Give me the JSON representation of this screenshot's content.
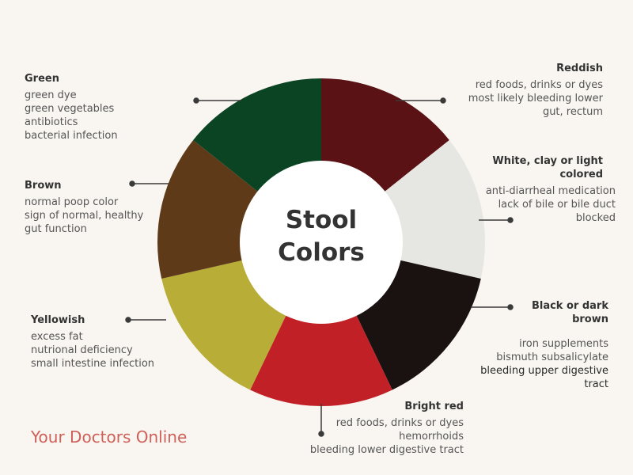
{
  "title_lines": [
    "Stool",
    "Colors"
  ],
  "brand": "Your Doctors Online",
  "segments": [
    {
      "key": "reddish",
      "color": "#5a1214"
    },
    {
      "key": "white",
      "color": "#e6e6e3"
    },
    {
      "key": "black",
      "color": "#1a1111"
    },
    {
      "key": "bright_red",
      "color": "#c12126"
    },
    {
      "key": "yellowish",
      "color": "#b8ad36"
    },
    {
      "key": "brown",
      "color": "#5e3a19"
    },
    {
      "key": "green",
      "color": "#0b4423"
    }
  ],
  "labels": {
    "green": {
      "title": "Green",
      "lines": [
        "green dye",
        "green vegetables",
        "antibiotics",
        "bacterial infection"
      ]
    },
    "brown": {
      "title": "Brown",
      "lines": [
        "normal poop color",
        "sign of normal, healthy",
        "gut function"
      ]
    },
    "yellowish": {
      "title": "Yellowish",
      "lines": [
        "excess fat",
        "nutrional deficiency",
        "small intestine infection"
      ]
    },
    "reddish": {
      "title": "Reddish",
      "lines": [
        "red foods, drinks or dyes",
        "most likely bleeding lower",
        "gut, rectum"
      ]
    },
    "white": {
      "title": "White, clay or light colored",
      "lines": [
        "anti-diarrheal medication",
        "lack of bile or bile duct",
        "blocked"
      ]
    },
    "black": {
      "title": "Black or dark brown",
      "lines": [
        "iron supplements",
        "bismuth subsalicylate",
        "bleeding upper digestive",
        "tract"
      ]
    },
    "bright_red": {
      "title": "Bright red",
      "lines": [
        "red foods, drinks or dyes",
        "hemorrhoids",
        "bleeding lower digestive tract"
      ]
    }
  }
}
